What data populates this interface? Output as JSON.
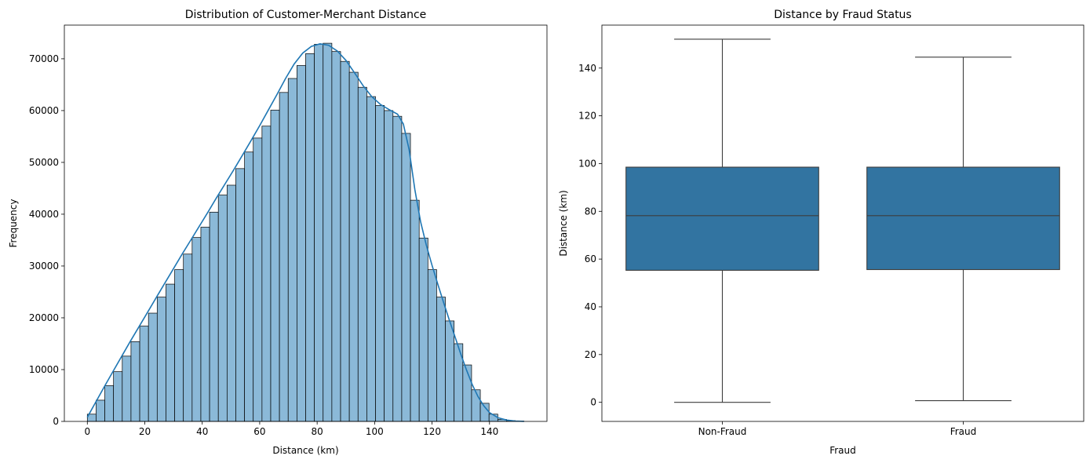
{
  "chart_data": [
    {
      "type": "bar",
      "title": "Distribution of Customer-Merchant Distance",
      "xlabel": "Distance (km)",
      "ylabel": "Frequency",
      "xlim": [
        -8,
        160
      ],
      "ylim": [
        0,
        76500
      ],
      "xticks": [
        0,
        20,
        40,
        60,
        80,
        100,
        120,
        140
      ],
      "yticks": [
        0,
        10000,
        20000,
        30000,
        40000,
        50000,
        60000,
        70000
      ],
      "bin_width": 3.04,
      "bin_start": 0,
      "values": [
        1400,
        4100,
        6900,
        9600,
        12600,
        15400,
        18400,
        20900,
        24000,
        26500,
        29300,
        32300,
        35500,
        37500,
        40400,
        43700,
        45600,
        48800,
        52000,
        54700,
        57000,
        60100,
        63500,
        66200,
        68700,
        71000,
        72800,
        73000,
        71400,
        69500,
        67400,
        64500,
        62700,
        61000,
        60000,
        58900,
        55600,
        42700,
        35400,
        29300,
        24000,
        19400,
        15000,
        10900,
        6100,
        3500,
        1400,
        400,
        150,
        60
      ],
      "kde": [
        [
          0,
          800
        ],
        [
          3,
          3800
        ],
        [
          6,
          6800
        ],
        [
          9,
          9700
        ],
        [
          12,
          12600
        ],
        [
          15,
          15500
        ],
        [
          18,
          18300
        ],
        [
          21,
          21100
        ],
        [
          24,
          23900
        ],
        [
          27,
          26700
        ],
        [
          30,
          29500
        ],
        [
          33,
          32300
        ],
        [
          36,
          35000
        ],
        [
          39,
          37700
        ],
        [
          42,
          40400
        ],
        [
          45,
          43200
        ],
        [
          48,
          45900
        ],
        [
          51,
          48600
        ],
        [
          54,
          51400
        ],
        [
          57,
          54200
        ],
        [
          60,
          57100
        ],
        [
          63,
          60100
        ],
        [
          66,
          63100
        ],
        [
          69,
          66200
        ],
        [
          72,
          69000
        ],
        [
          75,
          71100
        ],
        [
          78,
          72400
        ],
        [
          81,
          72900
        ],
        [
          84,
          72600
        ],
        [
          87,
          71500
        ],
        [
          90,
          69700
        ],
        [
          93,
          67300
        ],
        [
          96,
          64800
        ],
        [
          99,
          62700
        ],
        [
          102,
          61200
        ],
        [
          105,
          60200
        ],
        [
          108,
          59300
        ],
        [
          110,
          57400
        ],
        [
          112,
          52500
        ],
        [
          114,
          44800
        ],
        [
          116,
          38600
        ],
        [
          118,
          34000
        ],
        [
          120,
          30100
        ],
        [
          122,
          26500
        ],
        [
          124,
          23000
        ],
        [
          126,
          19600
        ],
        [
          128,
          16300
        ],
        [
          130,
          13000
        ],
        [
          132,
          9900
        ],
        [
          134,
          7100
        ],
        [
          136,
          4800
        ],
        [
          138,
          3000
        ],
        [
          140,
          1700
        ],
        [
          143,
          700
        ],
        [
          146,
          250
        ],
        [
          149,
          80
        ],
        [
          152,
          20
        ]
      ],
      "bar_color": "#8bb9d8",
      "line_color": "#1f77b4"
    },
    {
      "type": "box",
      "title": "Distance by Fraud Status",
      "xlabel": "Fraud",
      "ylabel": "Distance (km)",
      "ylim": [
        -8,
        158
      ],
      "yticks": [
        0,
        20,
        40,
        60,
        80,
        100,
        120,
        140
      ],
      "categories": [
        "Non-Fraud",
        "Fraud"
      ],
      "boxes": [
        {
          "min": 0,
          "q1": 55.3,
          "median": 78.2,
          "q3": 98.5,
          "max": 152.1
        },
        {
          "min": 0.7,
          "q1": 55.6,
          "median": 78.2,
          "q3": 98.5,
          "max": 144.6
        }
      ],
      "box_color": "#3274a1"
    }
  ]
}
